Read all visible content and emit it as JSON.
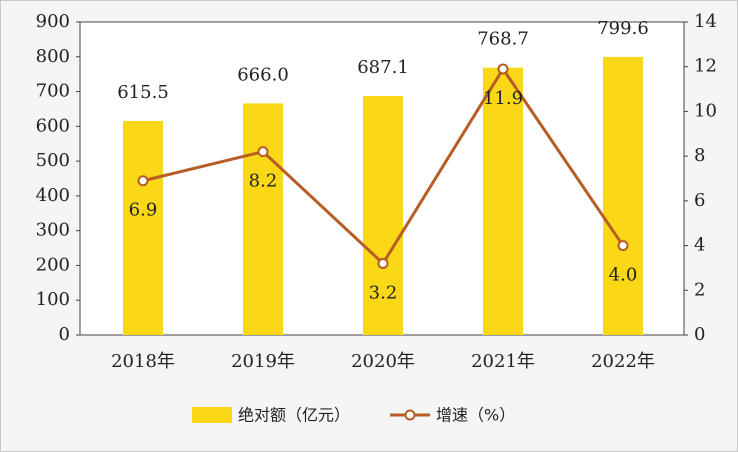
{
  "chart_data": {
    "type": "bar-line",
    "categories": [
      "2018年",
      "2019年",
      "2020年",
      "2021年",
      "2022年"
    ],
    "series": [
      {
        "name": "绝对额（亿元）",
        "type": "bar",
        "color": "#fad817",
        "values": [
          615.5,
          666,
          687.1,
          768.7,
          799.6
        ],
        "value_labels": [
          "615.5",
          "666.0",
          "687.1",
          "768.7",
          "799.6"
        ]
      },
      {
        "name": "增速（%）",
        "type": "line",
        "axis": "y2",
        "color": "#b85c25",
        "values": [
          6.9,
          8.2,
          3.2,
          11.9,
          4
        ],
        "value_labels": [
          "6.9",
          "8.2",
          "3.2",
          "11.9",
          "4.0"
        ]
      }
    ],
    "ylim": [
      0,
      900
    ],
    "yticks": [
      0,
      100,
      200,
      300,
      400,
      500,
      600,
      700,
      800,
      900
    ],
    "y2lim": [
      0,
      14
    ],
    "y2ticks": [
      0,
      2,
      4,
      6,
      8,
      10,
      12,
      14
    ]
  }
}
